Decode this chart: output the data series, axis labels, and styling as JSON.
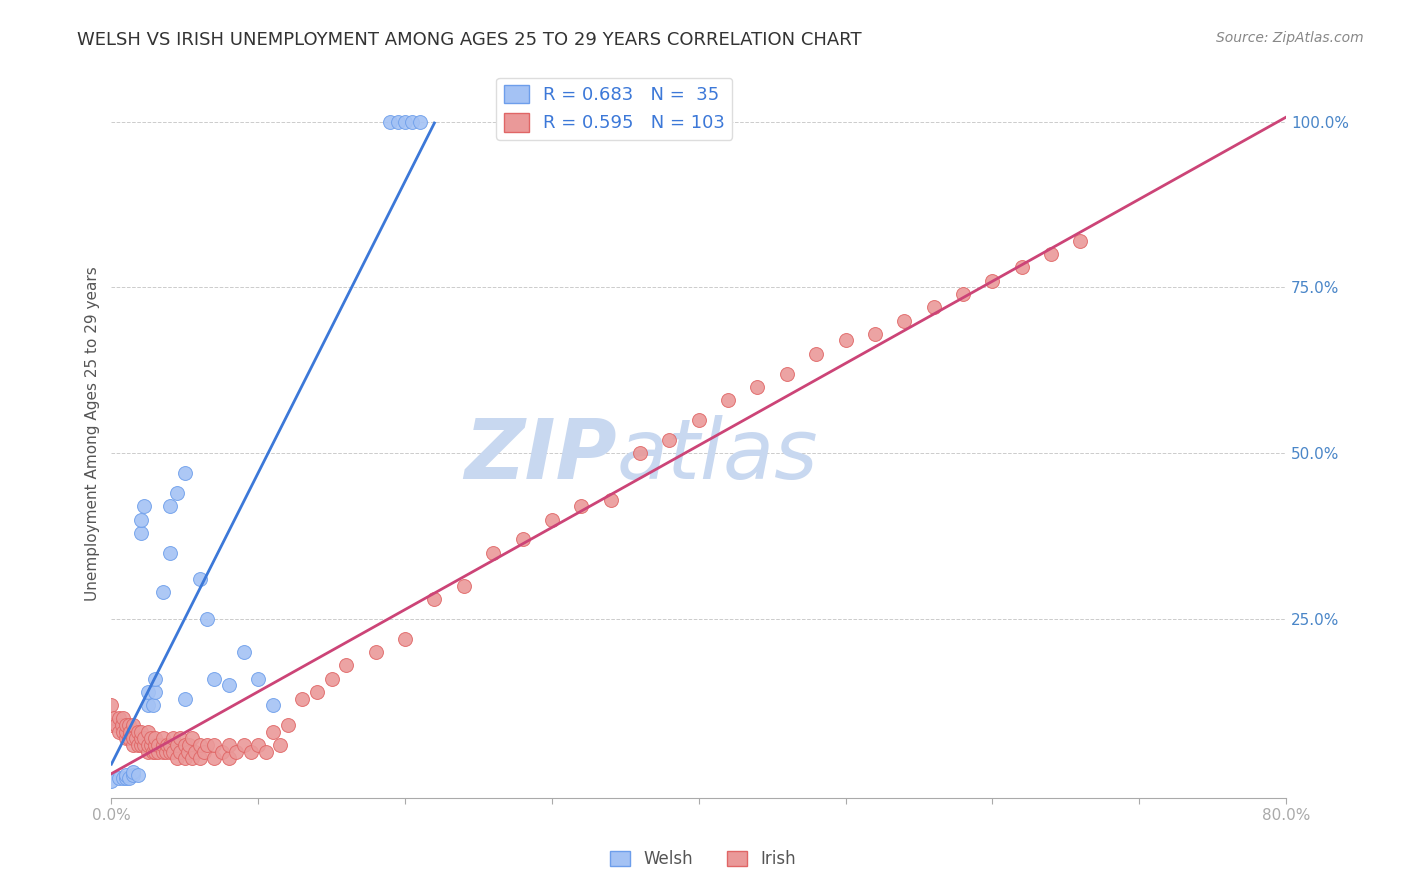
{
  "title": "WELSH VS IRISH UNEMPLOYMENT AMONG AGES 25 TO 29 YEARS CORRELATION CHART",
  "source": "Source: ZipAtlas.com",
  "ylabel": "Unemployment Among Ages 25 to 29 years",
  "welsh_R": 0.683,
  "welsh_N": 35,
  "irish_R": 0.595,
  "irish_N": 103,
  "welsh_color": "#a4c2f4",
  "welsh_edge_color": "#6d9eeb",
  "welsh_line_color": "#3c78d8",
  "irish_color": "#ea9999",
  "irish_edge_color": "#e06666",
  "irish_line_color": "#cc4477",
  "welsh_scatter_x": [
    0.0,
    0.005,
    0.008,
    0.01,
    0.01,
    0.012,
    0.015,
    0.015,
    0.018,
    0.02,
    0.02,
    0.022,
    0.025,
    0.025,
    0.028,
    0.03,
    0.03,
    0.035,
    0.04,
    0.04,
    0.045,
    0.05,
    0.05,
    0.06,
    0.065,
    0.07,
    0.08,
    0.09,
    0.1,
    0.11,
    0.19,
    0.195,
    0.2,
    0.205,
    0.21
  ],
  "welsh_scatter_y": [
    0.005,
    0.01,
    0.01,
    0.01,
    0.015,
    0.01,
    0.015,
    0.02,
    0.015,
    0.38,
    0.4,
    0.42,
    0.12,
    0.14,
    0.12,
    0.14,
    0.16,
    0.29,
    0.35,
    0.42,
    0.44,
    0.13,
    0.47,
    0.31,
    0.25,
    0.16,
    0.15,
    0.2,
    0.16,
    0.12,
    1.0,
    1.0,
    1.0,
    1.0,
    1.0
  ],
  "irish_scatter_x": [
    0.0,
    0.0,
    0.002,
    0.003,
    0.005,
    0.005,
    0.007,
    0.008,
    0.008,
    0.01,
    0.01,
    0.01,
    0.012,
    0.012,
    0.013,
    0.015,
    0.015,
    0.015,
    0.017,
    0.018,
    0.018,
    0.02,
    0.02,
    0.02,
    0.022,
    0.022,
    0.025,
    0.025,
    0.025,
    0.027,
    0.027,
    0.028,
    0.03,
    0.03,
    0.03,
    0.032,
    0.032,
    0.035,
    0.035,
    0.035,
    0.037,
    0.038,
    0.04,
    0.04,
    0.042,
    0.042,
    0.045,
    0.045,
    0.047,
    0.047,
    0.05,
    0.05,
    0.052,
    0.053,
    0.055,
    0.055,
    0.057,
    0.06,
    0.06,
    0.063,
    0.065,
    0.07,
    0.07,
    0.075,
    0.08,
    0.08,
    0.085,
    0.09,
    0.095,
    0.1,
    0.105,
    0.11,
    0.115,
    0.12,
    0.13,
    0.14,
    0.15,
    0.16,
    0.18,
    0.2,
    0.22,
    0.24,
    0.26,
    0.28,
    0.3,
    0.32,
    0.34,
    0.36,
    0.38,
    0.4,
    0.42,
    0.44,
    0.46,
    0.48,
    0.5,
    0.52,
    0.54,
    0.56,
    0.58,
    0.6,
    0.62,
    0.64,
    0.66
  ],
  "irish_scatter_y": [
    0.09,
    0.12,
    0.1,
    0.09,
    0.08,
    0.1,
    0.09,
    0.08,
    0.1,
    0.07,
    0.08,
    0.09,
    0.07,
    0.09,
    0.08,
    0.06,
    0.07,
    0.09,
    0.07,
    0.06,
    0.08,
    0.06,
    0.07,
    0.08,
    0.06,
    0.07,
    0.05,
    0.06,
    0.08,
    0.06,
    0.07,
    0.05,
    0.05,
    0.06,
    0.07,
    0.05,
    0.06,
    0.05,
    0.06,
    0.07,
    0.05,
    0.06,
    0.05,
    0.06,
    0.05,
    0.07,
    0.04,
    0.06,
    0.05,
    0.07,
    0.04,
    0.06,
    0.05,
    0.06,
    0.04,
    0.07,
    0.05,
    0.04,
    0.06,
    0.05,
    0.06,
    0.04,
    0.06,
    0.05,
    0.04,
    0.06,
    0.05,
    0.06,
    0.05,
    0.06,
    0.05,
    0.08,
    0.06,
    0.09,
    0.13,
    0.14,
    0.16,
    0.18,
    0.2,
    0.22,
    0.28,
    0.3,
    0.35,
    0.37,
    0.4,
    0.42,
    0.43,
    0.5,
    0.52,
    0.55,
    0.58,
    0.6,
    0.62,
    0.65,
    0.67,
    0.68,
    0.7,
    0.72,
    0.74,
    0.76,
    0.78,
    0.8,
    0.82
  ],
  "watermark_zip": "ZIP",
  "watermark_atlas": "atlas",
  "watermark_color": "#c8d8f0",
  "xlim": [
    0.0,
    0.8
  ],
  "ylim": [
    -0.02,
    1.08
  ],
  "ytick_vals": [
    0.25,
    0.5,
    0.75,
    1.0
  ],
  "ytick_labels": [
    "25.0%",
    "50.0%",
    "75.0%",
    "100.0%"
  ],
  "legend_welsh_label": "Welsh",
  "legend_irish_label": "Irish",
  "title_fontsize": 13,
  "axis_label_fontsize": 11,
  "tick_fontsize": 11,
  "source_fontsize": 10,
  "bg_color": "#ffffff"
}
